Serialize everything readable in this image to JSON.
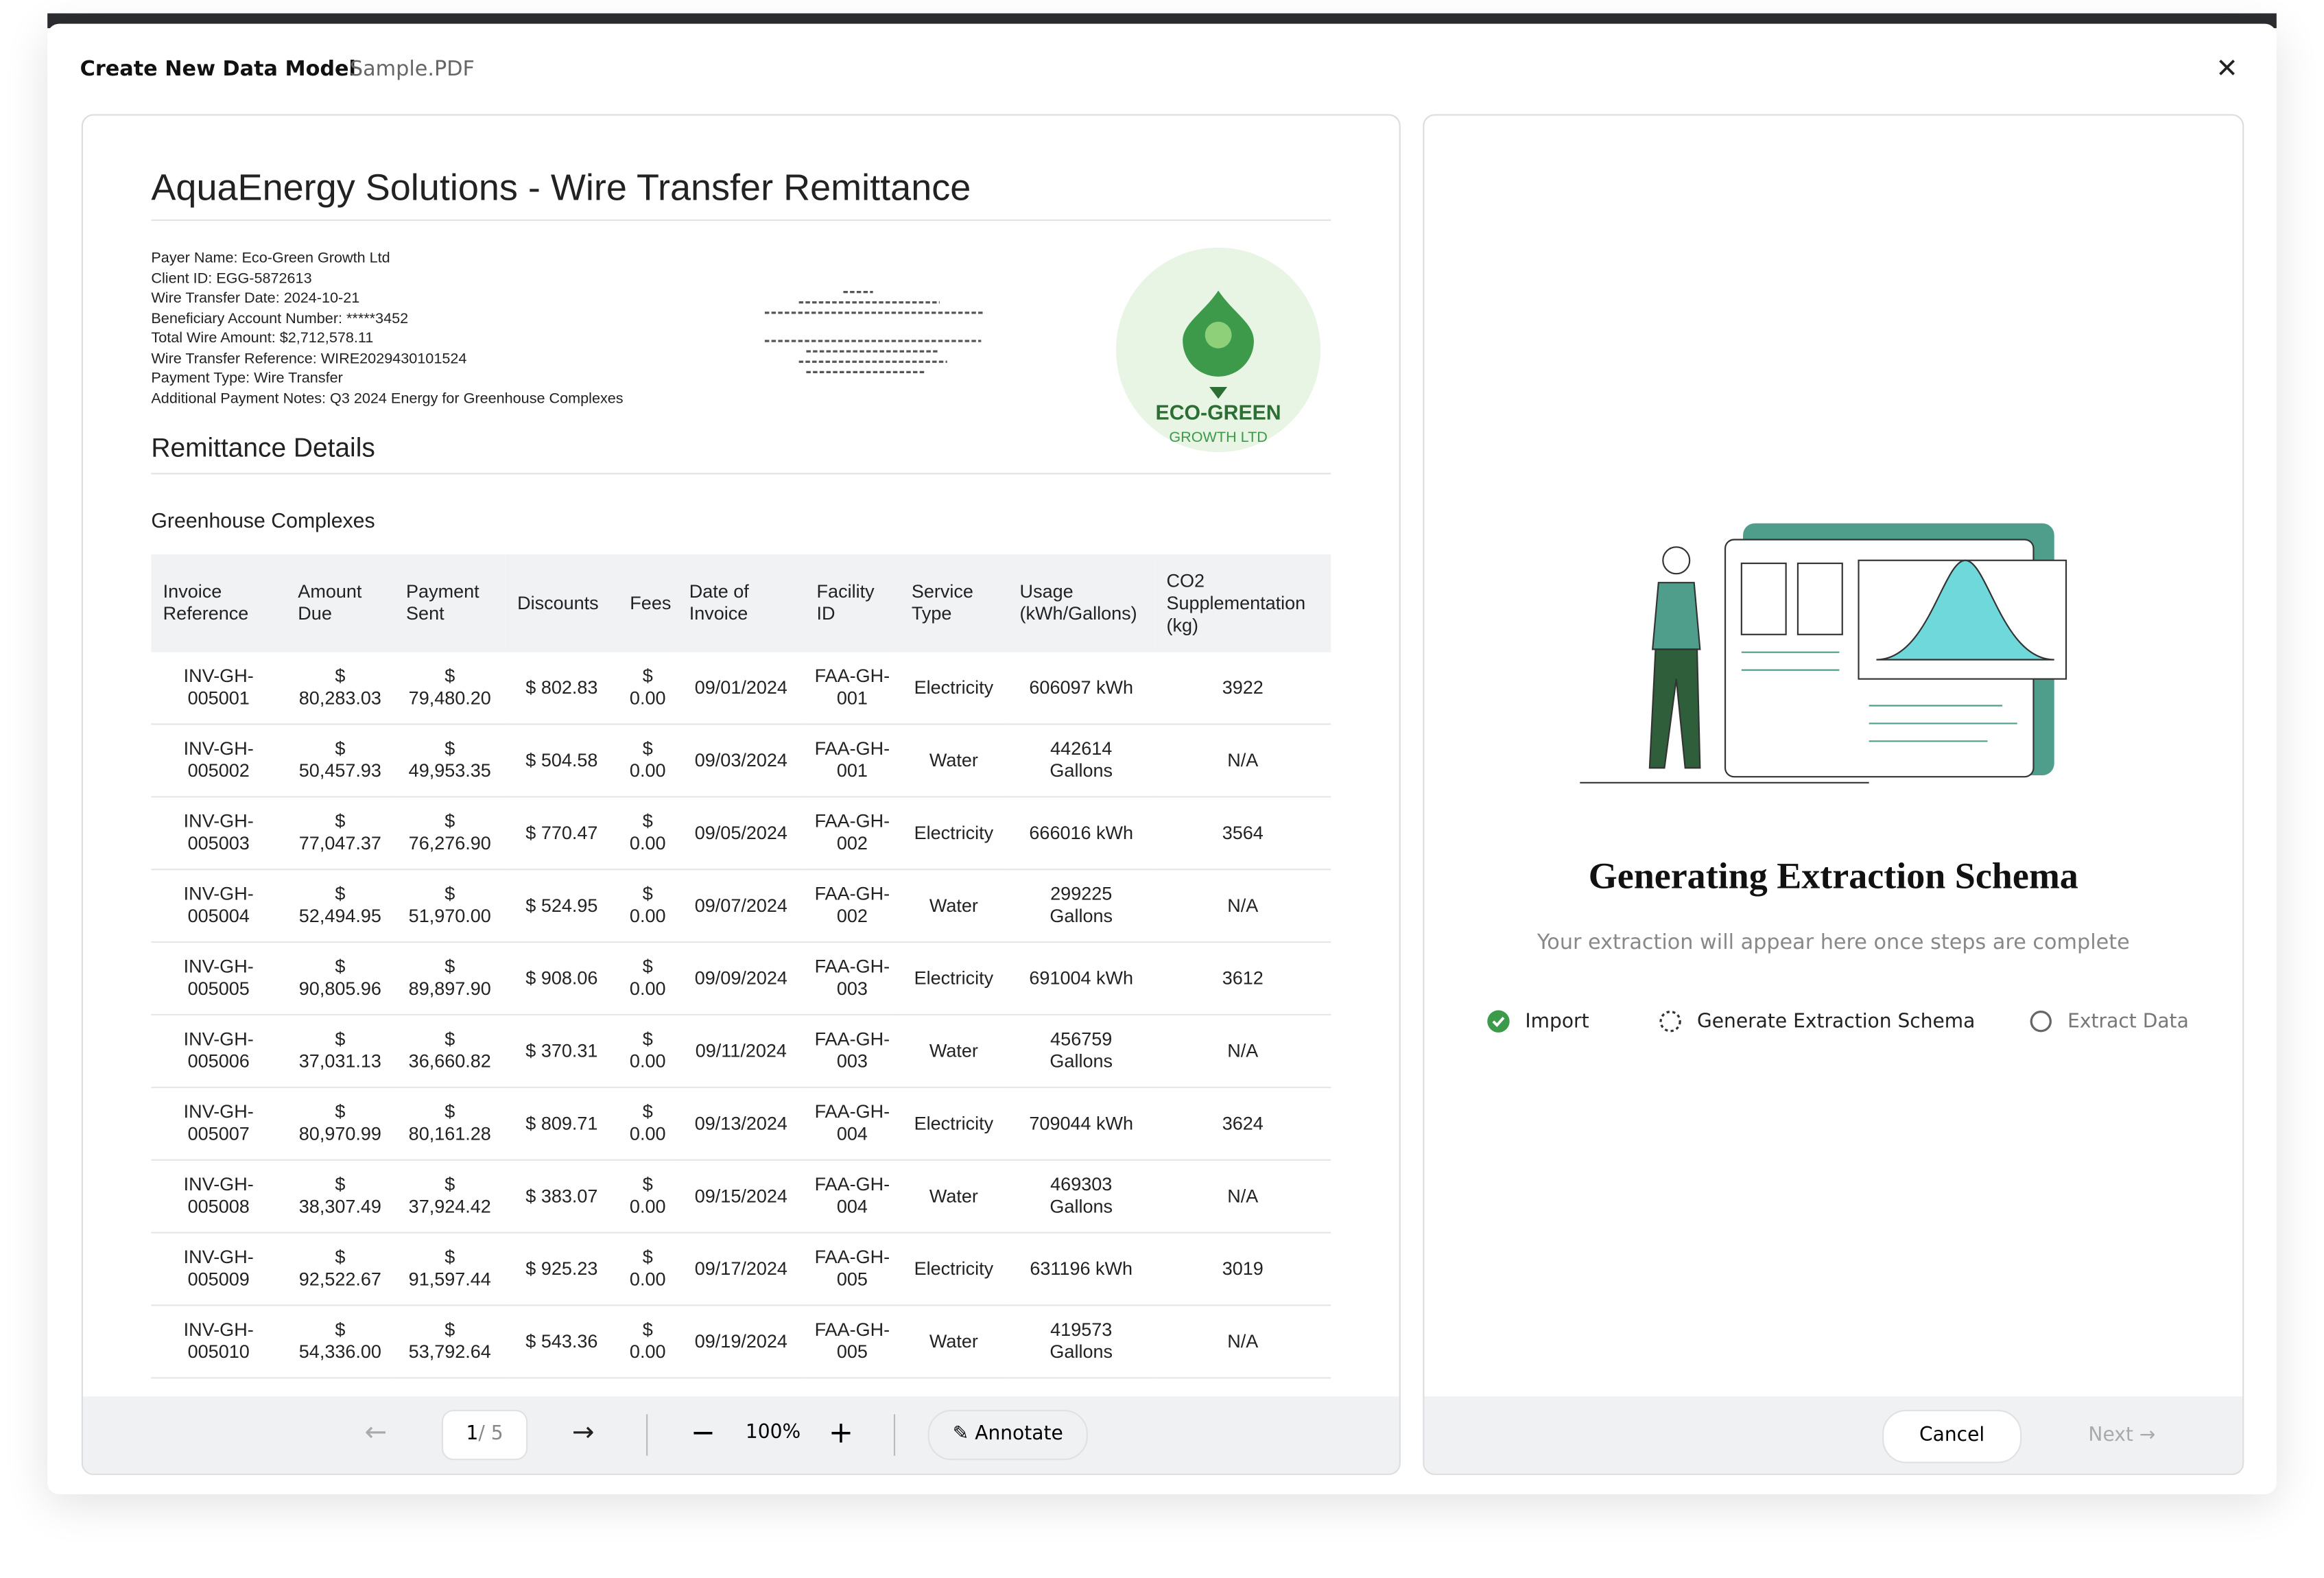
{
  "header": {
    "title": "Create New Data Model",
    "file": "Sample.PDF"
  },
  "document": {
    "title": "AquaEnergy Solutions - Wire Transfer Remittance",
    "info": [
      "Payer Name: Eco-Green Growth Ltd",
      "Client ID: EGG-5872613",
      "Wire Transfer Date: 2024-10-21",
      "Beneficiary Account Number: *****3452",
      "Total Wire Amount: $2,712,578.11",
      "Wire Transfer Reference: WIRE2029430101524",
      "Payment Type: Wire Transfer",
      "Additional Payment Notes: Q3 2024 Energy for Greenhouse Complexes"
    ],
    "logo": {
      "name": "ECO-GREEN",
      "sub": "GROWTH LTD"
    },
    "section": "Remittance Details",
    "subsection": "Greenhouse Complexes",
    "table": {
      "columns": [
        "Invoice Reference",
        "Amount Due",
        "Payment Sent",
        "Discounts",
        "Fees",
        "Date of Invoice",
        "Facility ID",
        "Service Type",
        "Usage (kWh/Gallons)",
        "CO2 Supplementation (kg)"
      ],
      "rows": [
        [
          "INV-GH-005001",
          "$ 80,283.03",
          "$ 79,480.20",
          "$ 802.83",
          "$ 0.00",
          "09/01/2024",
          "FAA-GH-001",
          "Electricity",
          "606097 kWh",
          "3922"
        ],
        [
          "INV-GH-005002",
          "$ 50,457.93",
          "$ 49,953.35",
          "$ 504.58",
          "$ 0.00",
          "09/03/2024",
          "FAA-GH-001",
          "Water",
          "442614 Gallons",
          "N/A"
        ],
        [
          "INV-GH-005003",
          "$ 77,047.37",
          "$ 76,276.90",
          "$ 770.47",
          "$ 0.00",
          "09/05/2024",
          "FAA-GH-002",
          "Electricity",
          "666016 kWh",
          "3564"
        ],
        [
          "INV-GH-005004",
          "$ 52,494.95",
          "$ 51,970.00",
          "$ 524.95",
          "$ 0.00",
          "09/07/2024",
          "FAA-GH-002",
          "Water",
          "299225 Gallons",
          "N/A"
        ],
        [
          "INV-GH-005005",
          "$ 90,805.96",
          "$ 89,897.90",
          "$ 908.06",
          "$ 0.00",
          "09/09/2024",
          "FAA-GH-003",
          "Electricity",
          "691004 kWh",
          "3612"
        ],
        [
          "INV-GH-005006",
          "$ 37,031.13",
          "$ 36,660.82",
          "$ 370.31",
          "$ 0.00",
          "09/11/2024",
          "FAA-GH-003",
          "Water",
          "456759 Gallons",
          "N/A"
        ],
        [
          "INV-GH-005007",
          "$ 80,970.99",
          "$ 80,161.28",
          "$ 809.71",
          "$ 0.00",
          "09/13/2024",
          "FAA-GH-004",
          "Electricity",
          "709044 kWh",
          "3624"
        ],
        [
          "INV-GH-005008",
          "$ 38,307.49",
          "$ 37,924.42",
          "$ 383.07",
          "$ 0.00",
          "09/15/2024",
          "FAA-GH-004",
          "Water",
          "469303 Gallons",
          "N/A"
        ],
        [
          "INV-GH-005009",
          "$ 92,522.67",
          "$ 91,597.44",
          "$ 925.23",
          "$ 0.00",
          "09/17/2024",
          "FAA-GH-005",
          "Electricity",
          "631196 kWh",
          "3019"
        ],
        [
          "INV-GH-005010",
          "$ 54,336.00",
          "$ 53,792.64",
          "$ 543.36",
          "$ 0.00",
          "09/19/2024",
          "FAA-GH-005",
          "Water",
          "419573 Gallons",
          "N/A"
        ]
      ]
    }
  },
  "toolbar": {
    "page": "1",
    "page_total": "/ 5",
    "zoom": "100%",
    "annotate": "Annotate"
  },
  "status": {
    "title": "Generating Extraction Schema",
    "subtitle": "Your extraction will appear here once steps are complete",
    "steps": [
      "Import",
      "Generate Extraction Schema",
      "Extract Data"
    ]
  },
  "footer": {
    "cancel": "Cancel",
    "next": "Next"
  }
}
